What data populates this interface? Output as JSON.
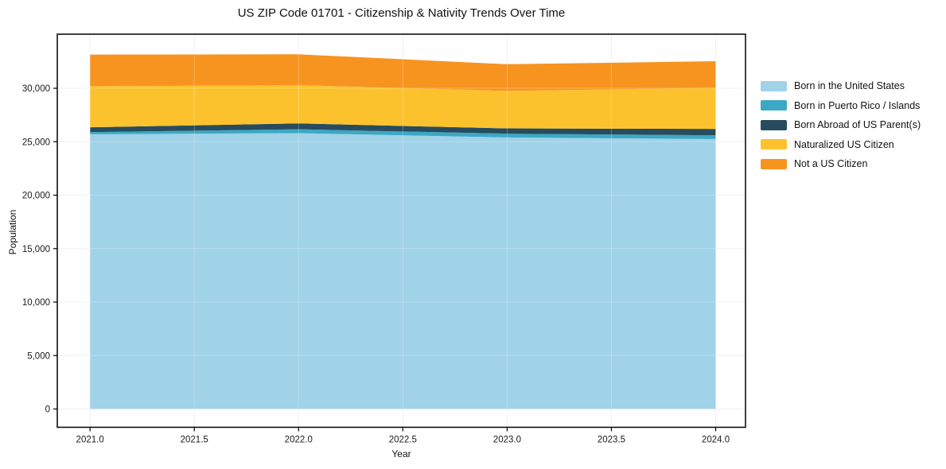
{
  "title": "US ZIP Code 01701 - Citizenship & Nativity Trends Over Time",
  "chart_data": {
    "type": "area",
    "stacked": true,
    "title": "US ZIP Code 01701 - Citizenship & Nativity Trends Over Time",
    "xlabel": "Year",
    "ylabel": "Population",
    "x": [
      2021,
      2022,
      2023,
      2024
    ],
    "series": [
      {
        "name": "Born in the United States",
        "color": "#a0d2e8",
        "values": [
          25700,
          25800,
          25400,
          25250
        ]
      },
      {
        "name": "Born in Puerto Rico / Islands",
        "color": "#3ca8c4",
        "values": [
          200,
          370,
          350,
          350
        ]
      },
      {
        "name": "Born Abroad of US Parent(s)",
        "color": "#274c5f",
        "values": [
          450,
          540,
          500,
          600
        ]
      },
      {
        "name": "Naturalized US Citizen",
        "color": "#fcc22d",
        "values": [
          3850,
          3580,
          3500,
          3850
        ]
      },
      {
        "name": "Not a US Citizen",
        "color": "#f79420",
        "values": [
          2950,
          2890,
          2500,
          2480
        ]
      }
    ],
    "xticks": [
      2021.0,
      2021.5,
      2022.0,
      2022.5,
      2023.0,
      2023.5,
      2024.0
    ],
    "yticks": [
      0,
      5000,
      10000,
      15000,
      20000,
      25000,
      30000
    ],
    "xlim": [
      2020.843,
      2024.143
    ],
    "ylim": [
      -1710,
      35060
    ],
    "grid": true,
    "legend_position": "right-outside",
    "colors": {
      "grid": "#ececec",
      "spine": "#000000",
      "text": "#1a1a1a",
      "background": "#ffffff"
    }
  }
}
